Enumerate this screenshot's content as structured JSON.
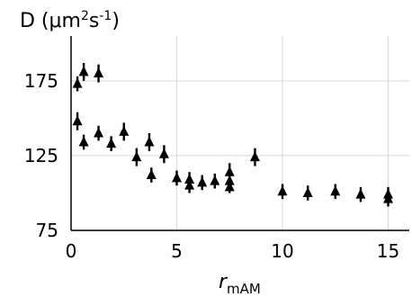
{
  "chart_data": {
    "type": "scatter",
    "title": "",
    "ylabel_main": "D (μm",
    "ylabel_sup1": "2",
    "ylabel_mid": "s",
    "ylabel_sup2": "-1",
    "ylabel_end": ")",
    "xlabel_main": "r",
    "xlabel_sub": "mAM",
    "xlim": [
      0,
      16
    ],
    "ylim": [
      75,
      205
    ],
    "xticks": [
      0,
      5,
      10,
      15
    ],
    "yticks": [
      75,
      125,
      175
    ],
    "grid": true,
    "marker": "triangle",
    "color": "#000000",
    "points": [
      {
        "x": 0.3,
        "y": 173,
        "err": 5
      },
      {
        "x": 0.6,
        "y": 181,
        "err": 6
      },
      {
        "x": 1.3,
        "y": 180,
        "err": 6
      },
      {
        "x": 0.3,
        "y": 148,
        "err": 6
      },
      {
        "x": 0.6,
        "y": 134,
        "err": 5
      },
      {
        "x": 1.3,
        "y": 140,
        "err": 5
      },
      {
        "x": 1.9,
        "y": 133,
        "err": 5
      },
      {
        "x": 2.5,
        "y": 141,
        "err": 6
      },
      {
        "x": 3.1,
        "y": 124,
        "err": 6
      },
      {
        "x": 3.7,
        "y": 134,
        "err": 6
      },
      {
        "x": 3.8,
        "y": 112,
        "err": 5
      },
      {
        "x": 4.4,
        "y": 126,
        "err": 6
      },
      {
        "x": 5.0,
        "y": 110,
        "err": 5
      },
      {
        "x": 5.6,
        "y": 109,
        "err": 5
      },
      {
        "x": 5.6,
        "y": 105,
        "err": 5
      },
      {
        "x": 6.2,
        "y": 107,
        "err": 5
      },
      {
        "x": 6.8,
        "y": 108,
        "err": 5
      },
      {
        "x": 7.5,
        "y": 114,
        "err": 6
      },
      {
        "x": 7.5,
        "y": 108,
        "err": 5
      },
      {
        "x": 7.5,
        "y": 104,
        "err": 4
      },
      {
        "x": 8.7,
        "y": 124,
        "err": 6
      },
      {
        "x": 10.0,
        "y": 101,
        "err": 5
      },
      {
        "x": 11.2,
        "y": 100,
        "err": 5
      },
      {
        "x": 12.5,
        "y": 101,
        "err": 5
      },
      {
        "x": 13.7,
        "y": 99,
        "err": 5
      },
      {
        "x": 15.0,
        "y": 99,
        "err": 5
      },
      {
        "x": 15.0,
        "y": 96,
        "err": 5
      }
    ]
  }
}
